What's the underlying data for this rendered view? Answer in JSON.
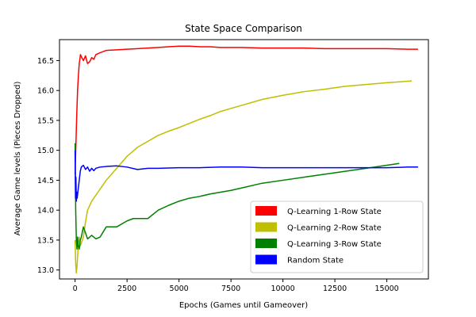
{
  "chart_data": {
    "type": "line",
    "title": "State Space Comparison",
    "xlabel": "Epochs (Games until Gameover)",
    "ylabel": "Average Game levels (Pieces Dropped)",
    "xlim": [
      -750,
      17000
    ],
    "ylim": [
      12.85,
      16.85
    ],
    "xticks": [
      0,
      2500,
      5000,
      7500,
      10000,
      12500,
      15000
    ],
    "xtick_labels": [
      "0",
      "2500",
      "5000",
      "7500",
      "10000",
      "12500",
      "15000"
    ],
    "yticks": [
      13.0,
      13.5,
      14.0,
      14.5,
      15.0,
      15.5,
      16.0,
      16.5
    ],
    "ytick_labels": [
      "13.0",
      "13.5",
      "14.0",
      "14.5",
      "15.0",
      "15.5",
      "16.0",
      "16.5"
    ],
    "grid": false,
    "legend_position": "bottom-right",
    "series": [
      {
        "name": "Q-Learning 1-Row State",
        "color": "#ff0000",
        "x": [
          0,
          40,
          80,
          120,
          160,
          200,
          260,
          320,
          400,
          500,
          600,
          700,
          800,
          900,
          1000,
          1200,
          1500,
          2000,
          2500,
          3000,
          3500,
          4000,
          4500,
          5000,
          5500,
          6000,
          6500,
          7000,
          8000,
          9000,
          10000,
          11000,
          12000,
          13000,
          14000,
          15000,
          16000,
          16500
        ],
        "y": [
          14.6,
          15.1,
          15.6,
          16.0,
          16.25,
          16.45,
          16.6,
          16.55,
          16.5,
          16.58,
          16.45,
          16.48,
          16.55,
          16.52,
          16.6,
          16.63,
          16.67,
          16.68,
          16.69,
          16.7,
          16.71,
          16.72,
          16.73,
          16.74,
          16.74,
          16.73,
          16.73,
          16.72,
          16.72,
          16.71,
          16.71,
          16.71,
          16.7,
          16.7,
          16.7,
          16.7,
          16.69,
          16.69
        ]
      },
      {
        "name": "Q-Learning 2-Row State",
        "color": "#bfbf00",
        "x": [
          0,
          30,
          60,
          100,
          150,
          200,
          250,
          300,
          400,
          500,
          600,
          800,
          1000,
          1200,
          1500,
          2000,
          2500,
          3000,
          3500,
          4000,
          4500,
          5000,
          5500,
          6000,
          6500,
          7000,
          7500,
          8000,
          8500,
          9000,
          10000,
          11000,
          12000,
          13000,
          14000,
          15000,
          16200
        ],
        "y": [
          13.5,
          13.1,
          12.95,
          13.1,
          13.4,
          13.55,
          13.4,
          13.45,
          13.55,
          13.8,
          14.0,
          14.15,
          14.25,
          14.35,
          14.5,
          14.7,
          14.9,
          15.05,
          15.15,
          15.25,
          15.32,
          15.38,
          15.45,
          15.52,
          15.58,
          15.65,
          15.7,
          15.75,
          15.8,
          15.85,
          15.92,
          15.98,
          16.02,
          16.07,
          16.1,
          16.13,
          16.16
        ]
      },
      {
        "name": "Q-Learning 3-Row State",
        "color": "#008000",
        "x": [
          0,
          15,
          30,
          60,
          90,
          120,
          150,
          200,
          250,
          300,
          400,
          500,
          600,
          800,
          1000,
          1200,
          1500,
          2000,
          2500,
          2800,
          3500,
          4000,
          4500,
          5000,
          5500,
          6000,
          6500,
          7000,
          7500,
          8000,
          9000,
          10000,
          11000,
          12000,
          13000,
          14000,
          15000,
          15600
        ],
        "y": [
          15.12,
          14.6,
          14.0,
          13.5,
          13.35,
          13.55,
          13.4,
          13.35,
          13.5,
          13.55,
          13.72,
          13.62,
          13.52,
          13.58,
          13.52,
          13.55,
          13.72,
          13.72,
          13.82,
          13.86,
          13.86,
          14.0,
          14.08,
          14.15,
          14.2,
          14.23,
          14.27,
          14.3,
          14.33,
          14.37,
          14.45,
          14.5,
          14.55,
          14.6,
          14.65,
          14.7,
          14.75,
          14.78
        ]
      },
      {
        "name": "Random State",
        "color": "#0000ff",
        "x": [
          0,
          20,
          40,
          60,
          80,
          100,
          150,
          200,
          250,
          300,
          400,
          500,
          600,
          700,
          800,
          900,
          1000,
          1200,
          1500,
          2000,
          2500,
          3000,
          3500,
          4000,
          5000,
          6000,
          7000,
          8000,
          9000,
          10000,
          11000,
          12000,
          13000,
          14000,
          15000,
          16000,
          16500
        ],
        "y": [
          15.0,
          14.2,
          14.55,
          14.15,
          14.3,
          14.2,
          14.35,
          14.5,
          14.65,
          14.72,
          14.75,
          14.68,
          14.72,
          14.65,
          14.7,
          14.66,
          14.7,
          14.72,
          14.73,
          14.74,
          14.72,
          14.68,
          14.7,
          14.7,
          14.71,
          14.71,
          14.72,
          14.72,
          14.71,
          14.71,
          14.71,
          14.71,
          14.71,
          14.71,
          14.71,
          14.72,
          14.72
        ]
      }
    ]
  }
}
